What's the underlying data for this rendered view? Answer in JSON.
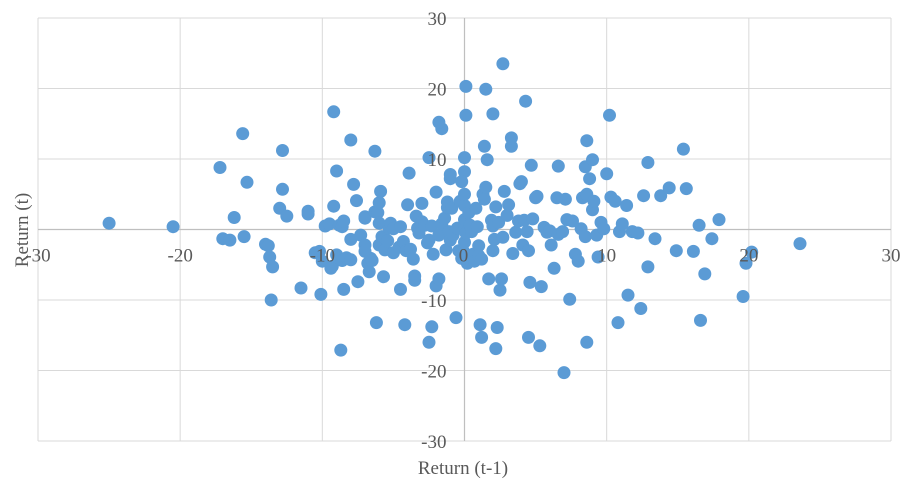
{
  "chart_data": {
    "type": "scatter",
    "title": "",
    "xlabel": "Return (t-1)",
    "ylabel": "Return (t)",
    "xlim": [
      -30,
      30
    ],
    "ylim": [
      -30,
      30
    ],
    "xticks": [
      -30,
      -20,
      -10,
      0,
      10,
      20,
      30
    ],
    "yticks": [
      -30,
      -20,
      -10,
      0,
      10,
      20,
      30
    ],
    "grid": true,
    "legend": "none",
    "colors": {
      "marker": "#5b9bd5",
      "grid": "#d9d9d9",
      "axis": "#bfbfbf",
      "text": "#595959"
    },
    "series": [
      {
        "points": [
          [
            -25.0,
            0.9
          ],
          [
            -20.5,
            0.4
          ],
          [
            -17.2,
            8.8
          ],
          [
            -17.0,
            -1.3
          ],
          [
            -16.5,
            -1.5
          ],
          [
            -15.5,
            -1.0
          ],
          [
            -15.3,
            6.7
          ],
          [
            -16.2,
            1.7
          ],
          [
            -14.0,
            -2.1
          ],
          [
            -13.8,
            -2.3
          ],
          [
            -13.7,
            -3.9
          ],
          [
            -13.5,
            -5.3
          ],
          [
            -13.0,
            3.0
          ],
          [
            -12.8,
            5.7
          ],
          [
            -12.5,
            1.9
          ],
          [
            -11.0,
            2.2
          ],
          [
            -11.0,
            2.6
          ],
          [
            -10.5,
            -3.3
          ],
          [
            -10.2,
            -3.1
          ],
          [
            -10.0,
            -4.5
          ],
          [
            -9.8,
            0.5
          ],
          [
            -9.5,
            0.8
          ],
          [
            -9.2,
            3.3
          ],
          [
            -9.0,
            8.3
          ],
          [
            -9.0,
            -3.6
          ],
          [
            -9.3,
            -5.2
          ],
          [
            -9.4,
            -5.5
          ],
          [
            -8.6,
            -4.4
          ],
          [
            -8.5,
            -8.5
          ],
          [
            -8.8,
            0.6
          ],
          [
            -8.6,
            0.4
          ],
          [
            -8.5,
            1.2
          ],
          [
            -8.3,
            -4.0
          ],
          [
            -8.0,
            -1.4
          ],
          [
            -8.0,
            -4.3
          ],
          [
            -7.8,
            6.4
          ],
          [
            -7.6,
            4.1
          ],
          [
            -7.3,
            -0.8
          ],
          [
            -7.0,
            1.6
          ],
          [
            -7.0,
            1.8
          ],
          [
            -7.0,
            -2.2
          ],
          [
            -7.0,
            -3.1
          ],
          [
            -6.8,
            -4.8
          ],
          [
            -6.7,
            -6.0
          ],
          [
            -6.6,
            -4.1
          ],
          [
            -6.5,
            -4.4
          ],
          [
            -6.3,
            2.5
          ],
          [
            -6.1,
            2.4
          ],
          [
            -6.0,
            -2.2
          ],
          [
            -6.0,
            0.9
          ],
          [
            -6.0,
            3.8
          ],
          [
            -5.9,
            5.4
          ],
          [
            -5.8,
            -1.0
          ],
          [
            -5.7,
            -6.7
          ],
          [
            -5.6,
            -2.9
          ],
          [
            -5.4,
            -1.6
          ],
          [
            -5.3,
            0.2
          ],
          [
            -5.2,
            0.9
          ],
          [
            -5.0,
            0.1
          ],
          [
            -5.0,
            -3.3
          ],
          [
            -4.6,
            -2.5
          ],
          [
            -4.5,
            0.4
          ],
          [
            -4.3,
            -1.7
          ],
          [
            -4.1,
            -3.0
          ],
          [
            -4.0,
            3.5
          ],
          [
            -3.8,
            -2.8
          ],
          [
            -3.6,
            -4.2
          ],
          [
            -3.5,
            -6.6
          ],
          [
            -3.5,
            -7.2
          ],
          [
            -3.4,
            1.9
          ],
          [
            -3.3,
            0.2
          ],
          [
            -3.2,
            -0.5
          ],
          [
            -3.0,
            1.1
          ],
          [
            -3.0,
            3.7
          ],
          [
            -2.8,
            0.6
          ],
          [
            -2.6,
            -1.9
          ],
          [
            -2.5,
            -1.5
          ],
          [
            -2.3,
            0.5
          ],
          [
            -2.2,
            -3.5
          ],
          [
            -2.0,
            -8.0
          ],
          [
            -2.0,
            5.3
          ],
          [
            -1.8,
            -0.8
          ],
          [
            -1.8,
            -7.0
          ],
          [
            -1.6,
            0.8
          ],
          [
            -1.4,
            1.6
          ],
          [
            -1.3,
            -2.9
          ],
          [
            -1.2,
            3.1
          ],
          [
            -1.2,
            3.9
          ],
          [
            -1.1,
            -0.3
          ],
          [
            -1.0,
            -1.5
          ],
          [
            -1.0,
            7.2
          ],
          [
            -1.0,
            7.8
          ],
          [
            -0.9,
            3.0
          ],
          [
            -0.8,
            -0.8
          ],
          [
            -0.6,
            -12.5
          ],
          [
            -0.5,
            0.2
          ],
          [
            -0.4,
            -3.0
          ],
          [
            -0.3,
            4.0
          ],
          [
            -0.2,
            -4.1
          ],
          [
            -0.1,
            -3.0
          ],
          [
            0.0,
            -1.8
          ],
          [
            0.0,
            0.5
          ],
          [
            0.0,
            1.4
          ],
          [
            0.0,
            3.4
          ],
          [
            0.0,
            5.0
          ],
          [
            0.0,
            8.2
          ],
          [
            0.0,
            10.2
          ],
          [
            0.1,
            -0.5
          ],
          [
            0.2,
            -4.8
          ],
          [
            0.3,
            2.4
          ],
          [
            0.4,
            0.6
          ],
          [
            0.5,
            -0.3
          ],
          [
            0.6,
            -3.5
          ],
          [
            0.7,
            -4.5
          ],
          [
            0.8,
            3.0
          ],
          [
            0.9,
            0.4
          ],
          [
            1.0,
            -2.3
          ],
          [
            1.0,
            -3.7
          ],
          [
            1.2,
            -4.2
          ],
          [
            1.3,
            5.0
          ],
          [
            1.4,
            4.3
          ],
          [
            1.5,
            6.0
          ],
          [
            1.6,
            9.9
          ],
          [
            1.7,
            -7.0
          ],
          [
            1.9,
            1.3
          ],
          [
            2.0,
            -3.0
          ],
          [
            2.0,
            0.5
          ],
          [
            2.1,
            -1.4
          ],
          [
            2.2,
            3.2
          ],
          [
            2.4,
            1.0
          ],
          [
            2.5,
            -8.6
          ],
          [
            2.6,
            -7.0
          ],
          [
            2.7,
            -1.1
          ],
          [
            2.8,
            5.4
          ],
          [
            3.0,
            2.0
          ],
          [
            3.1,
            3.5
          ],
          [
            3.3,
            11.8
          ],
          [
            3.4,
            -3.4
          ],
          [
            3.6,
            -0.4
          ],
          [
            3.8,
            1.2
          ],
          [
            3.9,
            6.5
          ],
          [
            4.0,
            6.8
          ],
          [
            4.1,
            -2.2
          ],
          [
            4.2,
            1.3
          ],
          [
            4.4,
            -0.3
          ],
          [
            4.5,
            -3.0
          ],
          [
            4.6,
            -7.5
          ],
          [
            4.7,
            9.1
          ],
          [
            4.8,
            1.5
          ],
          [
            5.0,
            4.5
          ],
          [
            5.1,
            4.7
          ],
          [
            5.4,
            -8.1
          ],
          [
            5.6,
            0.3
          ],
          [
            5.8,
            -0.4
          ],
          [
            6.0,
            -0.2
          ],
          [
            6.1,
            -2.2
          ],
          [
            6.3,
            -5.5
          ],
          [
            6.5,
            4.5
          ],
          [
            6.6,
            -0.7
          ],
          [
            6.9,
            -0.3
          ],
          [
            7.1,
            4.3
          ],
          [
            7.2,
            1.4
          ],
          [
            7.4,
            -9.9
          ],
          [
            7.6,
            1.2
          ],
          [
            7.8,
            -3.5
          ],
          [
            8.0,
            -4.5
          ],
          [
            8.2,
            0.1
          ],
          [
            8.3,
            4.5
          ],
          [
            8.5,
            -1.0
          ],
          [
            8.6,
            5.0
          ],
          [
            8.8,
            7.2
          ],
          [
            9.0,
            2.8
          ],
          [
            9.1,
            4.0
          ],
          [
            9.3,
            -0.8
          ],
          [
            9.4,
            -3.9
          ],
          [
            9.6,
            1.0
          ],
          [
            9.8,
            0.1
          ],
          [
            10.0,
            7.9
          ],
          [
            10.3,
            4.6
          ],
          [
            10.6,
            4.0
          ],
          [
            10.9,
            -0.3
          ],
          [
            11.1,
            0.8
          ],
          [
            11.4,
            3.4
          ],
          [
            11.8,
            -0.3
          ],
          [
            12.2,
            -0.5
          ],
          [
            12.6,
            4.8
          ],
          [
            12.9,
            -5.3
          ],
          [
            13.4,
            -1.3
          ],
          [
            13.8,
            4.8
          ],
          [
            14.4,
            5.9
          ],
          [
            14.9,
            -3.0
          ],
          [
            15.6,
            5.8
          ],
          [
            16.1,
            -3.1
          ],
          [
            16.5,
            0.6
          ],
          [
            16.9,
            -6.3
          ],
          [
            17.4,
            -1.3
          ],
          [
            17.9,
            1.4
          ],
          [
            19.8,
            -4.8
          ],
          [
            20.2,
            -3.2
          ],
          [
            23.6,
            -2.0
          ],
          [
            -11.5,
            -8.3
          ],
          [
            -7.5,
            -7.4
          ],
          [
            -4.5,
            -8.5
          ],
          [
            -1.6,
            14.3
          ],
          [
            0.1,
            16.2
          ],
          [
            0.1,
            20.3
          ],
          [
            1.5,
            19.9
          ],
          [
            2.0,
            16.4
          ],
          [
            2.7,
            23.5
          ],
          [
            4.3,
            18.2
          ],
          [
            10.2,
            16.2
          ],
          [
            15.4,
            11.4
          ],
          [
            8.6,
            12.6
          ],
          [
            3.3,
            13.0
          ],
          [
            1.4,
            11.8
          ],
          [
            -1.8,
            15.2
          ],
          [
            -6.3,
            11.1
          ],
          [
            -8.0,
            12.7
          ],
          [
            -12.8,
            11.2
          ],
          [
            -9.2,
            16.7
          ],
          [
            -15.6,
            13.6
          ],
          [
            -2.5,
            10.2
          ],
          [
            -0.2,
            6.8
          ],
          [
            -3.9,
            8.0
          ],
          [
            6.6,
            9.0
          ],
          [
            8.5,
            8.9
          ],
          [
            9.0,
            9.9
          ],
          [
            12.9,
            9.5
          ],
          [
            -10.1,
            -9.2
          ],
          [
            -6.2,
            -13.2
          ],
          [
            -4.2,
            -13.5
          ],
          [
            -2.3,
            -13.8
          ],
          [
            -2.5,
            -16.0
          ],
          [
            1.1,
            -13.5
          ],
          [
            1.2,
            -15.3
          ],
          [
            2.3,
            -13.9
          ],
          [
            2.2,
            -16.9
          ],
          [
            4.5,
            -15.3
          ],
          [
            5.3,
            -16.5
          ],
          [
            7.0,
            -20.3
          ],
          [
            8.6,
            -16.0
          ],
          [
            10.8,
            -13.2
          ],
          [
            11.5,
            -9.3
          ],
          [
            12.4,
            -11.2
          ],
          [
            16.6,
            -12.9
          ],
          [
            19.6,
            -9.5
          ],
          [
            -8.7,
            -17.1
          ],
          [
            -13.6,
            -10.0
          ]
        ]
      }
    ]
  }
}
